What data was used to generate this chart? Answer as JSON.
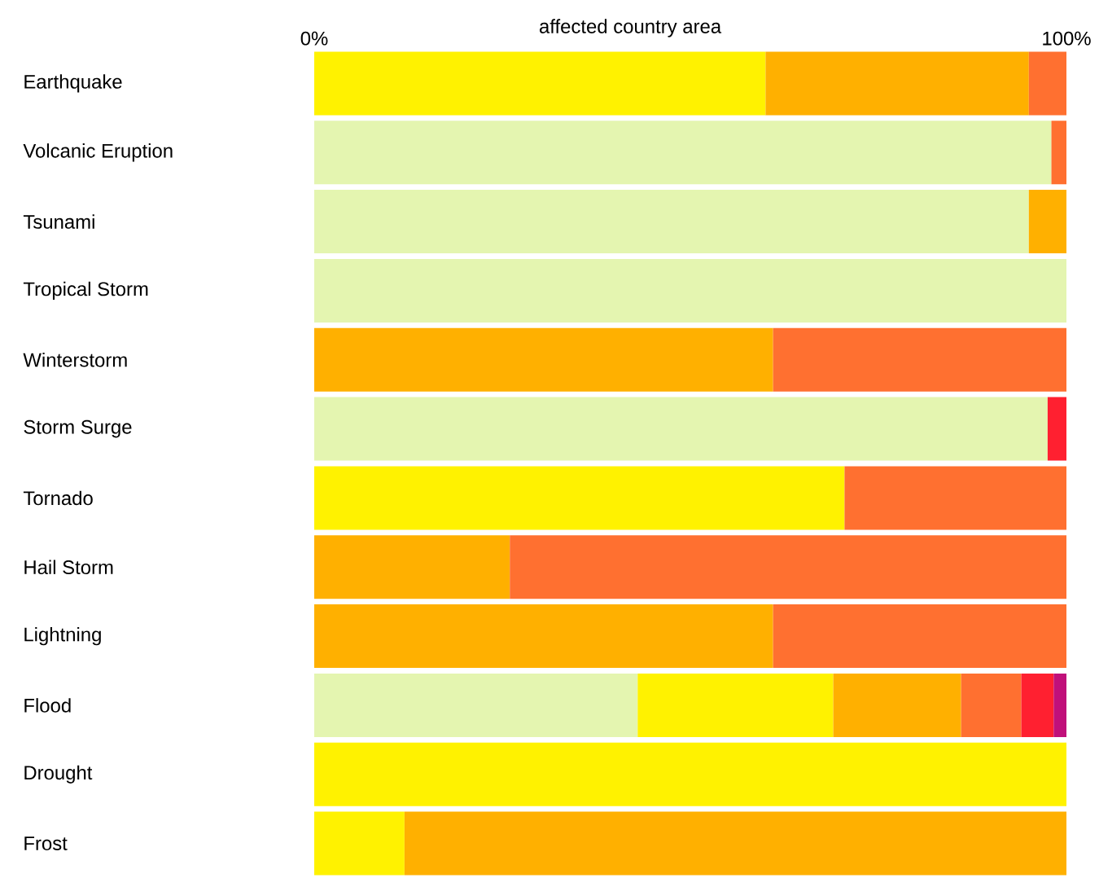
{
  "chart_data": {
    "type": "bar",
    "orientation": "horizontal",
    "stacked": true,
    "xlabel": "affected country area",
    "categories": [
      "Earthquake",
      "Volcanic Eruption",
      "Tsunami",
      "Tropical Storm",
      "Winterstorm",
      "Storm Surge",
      "Tornado",
      "Hail Storm",
      "Lightning",
      "Flood",
      "Drought",
      "Frost"
    ],
    "series": [
      {
        "color": "#e4f5b0",
        "values": [
          null,
          98,
          95,
          100,
          null,
          97.5,
          null,
          null,
          null,
          43,
          null,
          null
        ]
      },
      {
        "color": "#fff200",
        "values": [
          60,
          null,
          null,
          null,
          null,
          null,
          70.5,
          null,
          null,
          26,
          100,
          12
        ]
      },
      {
        "color": "#ffb000",
        "values": [
          35,
          null,
          5,
          null,
          61,
          null,
          null,
          26,
          61,
          17,
          null,
          88
        ]
      },
      {
        "color": "#ff7030",
        "values": [
          5,
          2,
          null,
          null,
          39,
          null,
          29.5,
          74,
          39,
          8,
          null,
          null
        ]
      },
      {
        "color": "#ff2030",
        "values": [
          null,
          null,
          null,
          null,
          null,
          2.5,
          null,
          null,
          null,
          4.3,
          null,
          null
        ]
      },
      {
        "color": "#c0107a",
        "values": [
          null,
          null,
          null,
          null,
          null,
          null,
          null,
          null,
          null,
          1.7,
          null,
          null
        ]
      }
    ],
    "xlim": [
      0,
      100
    ],
    "xticks": [
      {
        "value": 0,
        "label": "0%"
      },
      {
        "value": 100,
        "label": "100%"
      }
    ]
  }
}
